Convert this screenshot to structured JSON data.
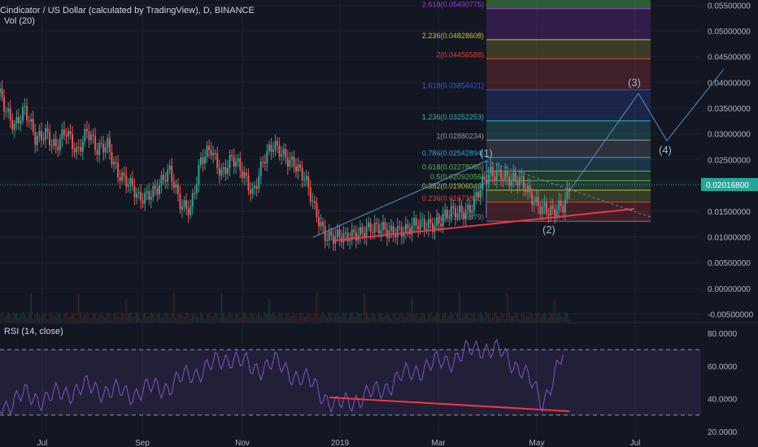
{
  "chart_title": "Cindicator / US Dollar (calculated by TradingView), D, BINANCE",
  "volume_label": "Vol (20)",
  "rsi_label": "RSI (14, close)",
  "chart_data": [
    {
      "type": "candlestick",
      "title": "Cindicator / US Dollar (calculated by TradingView), D, BINANCE",
      "x_ticks": [
        "Jul",
        "Sep",
        "Nov",
        "2019",
        "Mar",
        "May",
        "Jul"
      ],
      "y_ticks": [
        "0.05500000",
        "0.05000000",
        "0.04500000",
        "0.04000000",
        "0.03500000",
        "0.03000000",
        "0.02500000",
        "0.02000000",
        "0.01500000",
        "0.01000000",
        "0.00500000",
        "0.00000000",
        "-0.00500000"
      ],
      "ylim": [
        -0.0065,
        0.056
      ],
      "last_price": "0.02016800",
      "price_path": [
        [
          0,
          0.05
        ],
        [
          5,
          0.04
        ],
        [
          10,
          0.036
        ],
        [
          15,
          0.032
        ],
        [
          20,
          0.034
        ],
        [
          25,
          0.029
        ],
        [
          30,
          0.031
        ],
        [
          35,
          0.027
        ],
        [
          40,
          0.03
        ],
        [
          45,
          0.027
        ],
        [
          50,
          0.031
        ],
        [
          55,
          0.026
        ],
        [
          60,
          0.028
        ],
        [
          65,
          0.023
        ],
        [
          70,
          0.02
        ],
        [
          75,
          0.017
        ],
        [
          80,
          0.019
        ],
        [
          85,
          0.02
        ],
        [
          90,
          0.022
        ],
        [
          95,
          0.017
        ],
        [
          100,
          0.016
        ],
        [
          105,
          0.024
        ],
        [
          110,
          0.027
        ],
        [
          115,
          0.023
        ],
        [
          120,
          0.025
        ],
        [
          125,
          0.022
        ],
        [
          130,
          0.019
        ],
        [
          135,
          0.025
        ],
        [
          140,
          0.027
        ],
        [
          145,
          0.026
        ],
        [
          150,
          0.025
        ],
        [
          155,
          0.021
        ],
        [
          160,
          0.015
        ],
        [
          165,
          0.011
        ],
        [
          170,
          0.01
        ],
        [
          175,
          0.009
        ],
        [
          180,
          0.011
        ],
        [
          185,
          0.012
        ],
        [
          190,
          0.011
        ],
        [
          195,
          0.011
        ],
        [
          200,
          0.012
        ],
        [
          205,
          0.011
        ],
        [
          210,
          0.012
        ],
        [
          215,
          0.013
        ],
        [
          220,
          0.013
        ],
        [
          225,
          0.014
        ],
        [
          230,
          0.015
        ],
        [
          235,
          0.016
        ],
        [
          240,
          0.019
        ],
        [
          245,
          0.022
        ],
        [
          250,
          0.023
        ],
        [
          255,
          0.021
        ],
        [
          260,
          0.02
        ],
        [
          265,
          0.018
        ],
        [
          270,
          0.016
        ],
        [
          275,
          0.014
        ],
        [
          280,
          0.016
        ],
        [
          283,
          0.02
        ]
      ],
      "fibonacci_levels": [
        {
          "label": "0(0.01303879)",
          "value": 0.01303879,
          "color": "#787b86"
        },
        {
          "label": "0.236(0.01673800)",
          "value": 0.016738,
          "color": "#e03e3e"
        },
        {
          "label": "0.382(0.01906046)",
          "value": 0.01906046,
          "color": "#b2c23a"
        },
        {
          "label": "0.5(0.02092056)",
          "value": 0.02092056,
          "color": "#5ab55e"
        },
        {
          "label": "0.618(0.02278066)",
          "value": 0.02278066,
          "color": "#5ab55e"
        },
        {
          "label": "0.786(0.02542894)",
          "value": 0.02542894,
          "color": "#3aa0c8"
        },
        {
          "label": "1(0.02880234)",
          "value": 0.02880234,
          "color": "#9598a1"
        },
        {
          "label": "1.236(0.03252253)",
          "value": 0.03252253,
          "color": "#35b5b5"
        },
        {
          "label": "1.618(0.03854421)",
          "value": 0.03854421,
          "color": "#3a55d6"
        },
        {
          "label": "2(0.04456588)",
          "value": 0.04456588,
          "color": "#e03e3e"
        },
        {
          "label": "2.236(0.04828608)",
          "value": 0.04828608,
          "color": "#c9c23a"
        },
        {
          "label": "2.618(0.05430775)",
          "value": 0.05430775,
          "color": "#9c3ad6"
        }
      ],
      "wave_labels": [
        "(1)",
        "(2)",
        "(3)",
        "(4)"
      ]
    },
    {
      "type": "line",
      "title": "RSI (14, close)",
      "y_ticks": [
        "80.0000",
        "60.0000",
        "40.0000",
        "20.0000"
      ],
      "ylim": [
        17,
        86
      ],
      "bands": [
        30,
        70
      ],
      "values": [
        [
          0,
          38
        ],
        [
          10,
          36
        ],
        [
          20,
          42
        ],
        [
          30,
          40
        ],
        [
          40,
          44
        ],
        [
          50,
          47
        ],
        [
          60,
          45
        ],
        [
          70,
          43
        ],
        [
          80,
          46
        ],
        [
          90,
          48
        ],
        [
          100,
          55
        ],
        [
          110,
          60
        ],
        [
          120,
          66
        ],
        [
          130,
          58
        ],
        [
          140,
          62
        ],
        [
          150,
          55
        ],
        [
          160,
          48
        ],
        [
          170,
          35
        ],
        [
          180,
          40
        ],
        [
          190,
          44
        ],
        [
          200,
          52
        ],
        [
          210,
          58
        ],
        [
          220,
          62
        ],
        [
          230,
          66
        ],
        [
          240,
          72
        ],
        [
          250,
          68
        ],
        [
          260,
          58
        ],
        [
          270,
          38
        ],
        [
          280,
          66
        ]
      ]
    }
  ]
}
